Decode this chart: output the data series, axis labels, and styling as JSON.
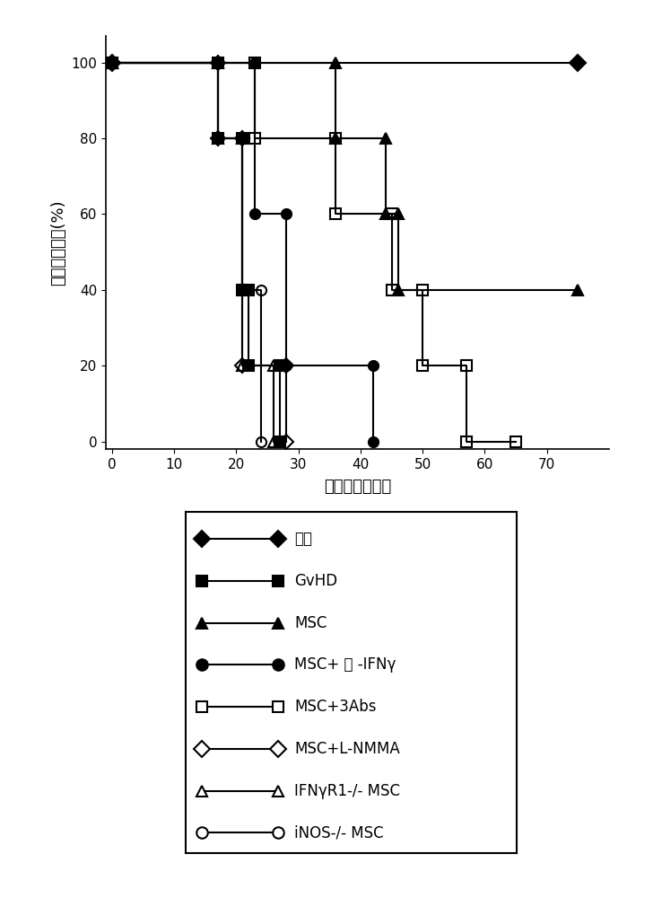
{
  "title": "",
  "xlabel": "骨髓移植后天数",
  "ylabel": "存活率百分比(%)",
  "xlim": [
    -1,
    80
  ],
  "ylim": [
    -2,
    107
  ],
  "xticks": [
    0,
    10,
    20,
    30,
    40,
    50,
    60,
    70
  ],
  "yticks": [
    0,
    20,
    40,
    60,
    80,
    100
  ],
  "background": "#ffffff",
  "series": [
    {
      "label": "对照",
      "marker": "D",
      "fillstyle": "full",
      "color": "black",
      "markersize": 9,
      "x": [
        0,
        75
      ],
      "y": [
        100,
        100
      ]
    },
    {
      "label": "GvHD",
      "marker": "s",
      "fillstyle": "full",
      "color": "black",
      "markersize": 8,
      "x": [
        0,
        17,
        17,
        21,
        21,
        22,
        22,
        27,
        27
      ],
      "y": [
        100,
        100,
        80,
        80,
        40,
        40,
        20,
        20,
        0
      ]
    },
    {
      "label": "MSC",
      "marker": "^",
      "fillstyle": "full",
      "color": "black",
      "markersize": 9,
      "x": [
        0,
        36,
        36,
        44,
        44,
        46,
        46,
        75
      ],
      "y": [
        100,
        100,
        80,
        80,
        60,
        60,
        40,
        40
      ]
    },
    {
      "label": "MSC+ 抗 -IFNγ",
      "marker": "o",
      "fillstyle": "full",
      "color": "black",
      "markersize": 8,
      "x": [
        0,
        23,
        23,
        28,
        28,
        42,
        42
      ],
      "y": [
        100,
        100,
        60,
        60,
        20,
        20,
        0
      ]
    },
    {
      "label": "MSC+3Abs",
      "marker": "s",
      "fillstyle": "none",
      "color": "black",
      "markersize": 8,
      "x": [
        0,
        23,
        23,
        36,
        36,
        45,
        45,
        50,
        50,
        57,
        57,
        65
      ],
      "y": [
        100,
        100,
        80,
        80,
        60,
        60,
        40,
        40,
        20,
        20,
        0,
        0
      ]
    },
    {
      "label": "MSC+L-NMMA",
      "marker": "D",
      "fillstyle": "none",
      "color": "black",
      "markersize": 8,
      "x": [
        0,
        17,
        17,
        21,
        21,
        28,
        28
      ],
      "y": [
        100,
        100,
        80,
        80,
        20,
        20,
        0
      ]
    },
    {
      "label": "IFNγR1-/- MSC",
      "marker": "^",
      "fillstyle": "none",
      "color": "black",
      "markersize": 9,
      "x": [
        0,
        17,
        17,
        21,
        21,
        26,
        26
      ],
      "y": [
        100,
        100,
        80,
        80,
        20,
        20,
        0
      ]
    },
    {
      "label": "iNOS-/- MSC",
      "marker": "o",
      "fillstyle": "none",
      "color": "black",
      "markersize": 8,
      "x": [
        0,
        17,
        17,
        21,
        21,
        24,
        24
      ],
      "y": [
        100,
        100,
        80,
        80,
        40,
        40,
        0
      ]
    }
  ],
  "legend_entries": [
    {
      "label": "对照",
      "marker": "D",
      "fill": true
    },
    {
      "label": "GvHD",
      "marker": "s",
      "fill": true
    },
    {
      "label": "MSC",
      "marker": "^",
      "fill": true
    },
    {
      "label": "MSC+ 抗 -IFNγ",
      "marker": "o",
      "fill": true
    },
    {
      "label": "MSC+3Abs",
      "marker": "s",
      "fill": false
    },
    {
      "label": "MSC+L-NMMA",
      "marker": "D",
      "fill": false
    },
    {
      "label": "IFNγR1-/- MSC",
      "marker": "^",
      "fill": false
    },
    {
      "label": "iNOS-/- MSC",
      "marker": "o",
      "fill": false
    }
  ]
}
